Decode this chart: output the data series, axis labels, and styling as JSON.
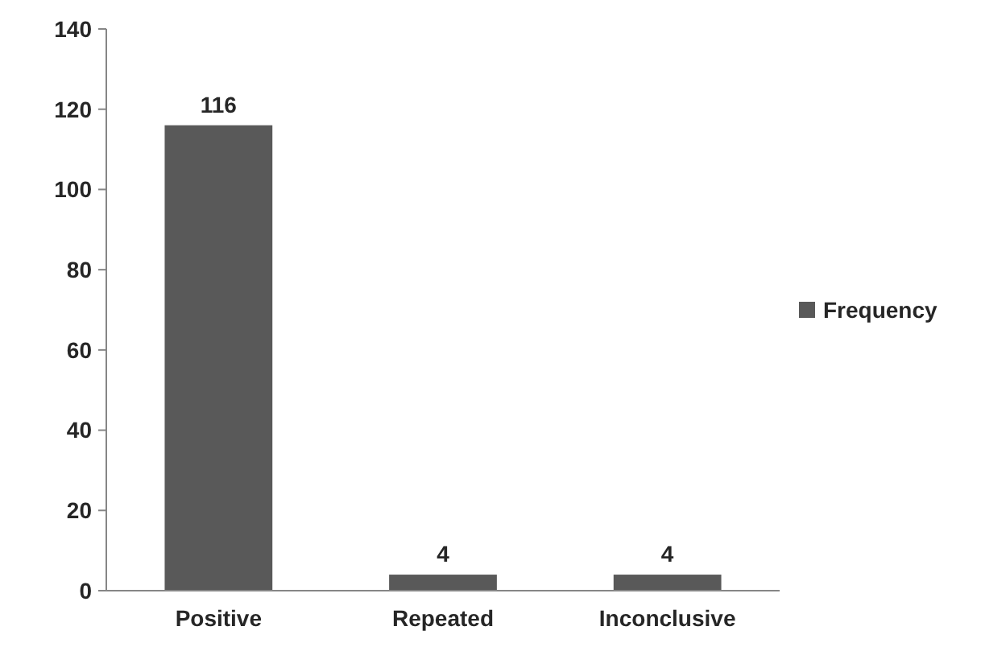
{
  "chart_data": {
    "type": "bar",
    "categories": [
      "Positive",
      "Repeated",
      "Inconclusive"
    ],
    "series": [
      {
        "name": "Frequency",
        "color": "#595959",
        "values": [
          116,
          4,
          4
        ]
      }
    ],
    "ylim": [
      0,
      140
    ],
    "yticks": [
      0,
      20,
      40,
      60,
      80,
      100,
      120,
      140
    ],
    "grid": false,
    "legend": "right",
    "data_labels": true
  }
}
